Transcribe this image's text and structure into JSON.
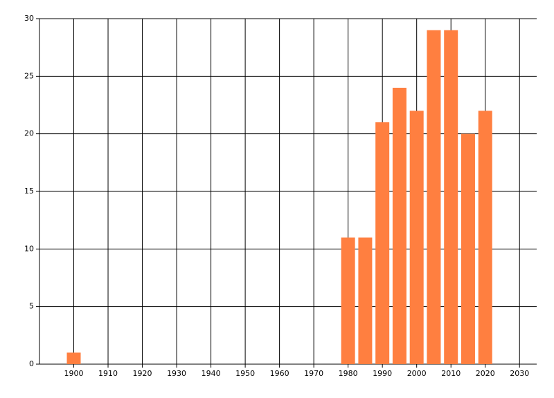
{
  "chart_data": {
    "type": "bar",
    "x": [
      1900,
      1980,
      1985,
      1990,
      1995,
      2000,
      2005,
      2010,
      2015,
      2020
    ],
    "values": [
      1,
      11,
      11,
      21,
      24,
      22,
      29,
      29,
      20,
      22
    ],
    "color": "#ff7f40",
    "xlim": [
      1890,
      2035
    ],
    "xticks": [
      1900,
      1910,
      1920,
      1930,
      1940,
      1950,
      1960,
      1970,
      1980,
      1990,
      2000,
      2010,
      2020,
      2030
    ],
    "ylim": [
      0,
      30
    ],
    "yticks": [
      0,
      5,
      10,
      15,
      20,
      25,
      30
    ],
    "grid": true
  }
}
